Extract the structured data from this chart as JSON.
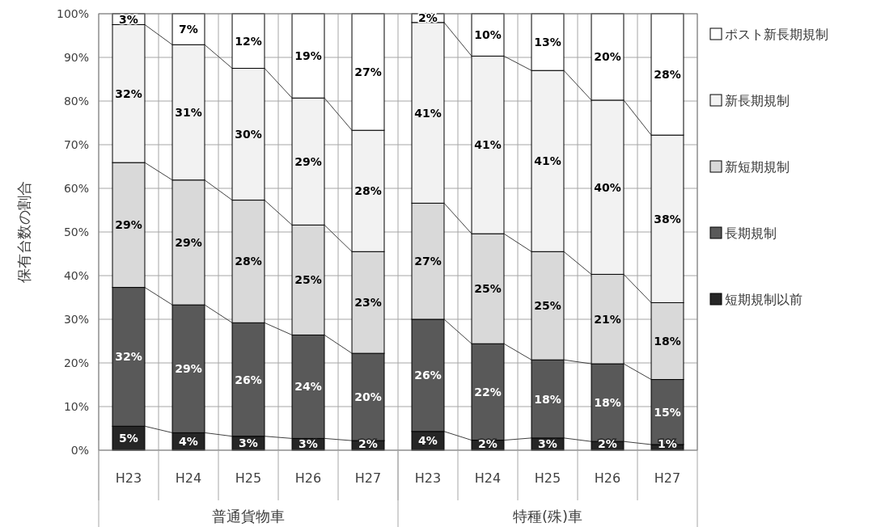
{
  "chart_data": {
    "type": "bar",
    "stacked": true,
    "ylabel": "保有台数の割合",
    "categories": [
      "H23",
      "H24",
      "H25",
      "H26",
      "H27",
      "H23",
      "H24",
      "H25",
      "H26",
      "H27"
    ],
    "annotations": [
      "普通貨物車",
      "特種(殊)車"
    ],
    "ylim": [
      0,
      100
    ],
    "yticks": [
      {
        "value": 0,
        "label": "0%"
      },
      {
        "value": 10,
        "label": "10%"
      },
      {
        "value": 20,
        "label": "20%"
      },
      {
        "value": 30,
        "label": "30%"
      },
      {
        "value": 40,
        "label": "40%"
      },
      {
        "value": 50,
        "label": "50%"
      },
      {
        "value": 60,
        "label": "60%"
      },
      {
        "value": 70,
        "label": "70%"
      },
      {
        "value": 80,
        "label": "80%"
      },
      {
        "value": 90,
        "label": "90%"
      },
      {
        "value": 100,
        "label": "100%"
      }
    ],
    "grid": true,
    "legend": "right",
    "series": [
      {
        "name": "短期規制以前",
        "color": "#262626",
        "values": [
          5.5,
          4,
          3.2,
          2.7,
          2.2,
          4.3,
          2.3,
          2.8,
          2,
          1.3
        ],
        "value_labels": [
          "5%",
          "4%",
          "3%",
          "3%",
          "2%",
          "4%",
          "2%",
          "3%",
          "2%",
          "1%"
        ]
      },
      {
        "name": "長期規制",
        "color": "#595959",
        "values": [
          31.8,
          29.3,
          26,
          23.7,
          20,
          25.7,
          22.1,
          17.9,
          17.8,
          14.9
        ],
        "value_labels": [
          "32%",
          "29%",
          "26%",
          "24%",
          "20%",
          "26%",
          "22%",
          "18%",
          "18%",
          "15%"
        ]
      },
      {
        "name": "新短期規制",
        "color": "#d9d9d9",
        "values": [
          28.6,
          28.6,
          28.1,
          25.2,
          23.3,
          26.6,
          25.2,
          24.8,
          20.5,
          17.6
        ],
        "value_labels": [
          "29%",
          "29%",
          "28%",
          "25%",
          "23%",
          "27%",
          "25%",
          "25%",
          "21%",
          "18%"
        ]
      },
      {
        "name": "新長期規制",
        "color": "#f2f2f2",
        "values": [
          31.6,
          31,
          30.2,
          29.1,
          27.8,
          41.4,
          40.7,
          41.5,
          39.9,
          38.4
        ],
        "value_labels": [
          "32%",
          "31%",
          "30%",
          "29%",
          "28%",
          "41%",
          "41%",
          "41%",
          "40%",
          "38%"
        ]
      },
      {
        "name": "ポスト新長期規制",
        "color": "#ffffff",
        "values": [
          2.5,
          7.1,
          12.5,
          19.3,
          26.7,
          2,
          9.7,
          13,
          19.8,
          27.8
        ],
        "value_labels": [
          "3%",
          "7%",
          "12%",
          "19%",
          "27%",
          "2%",
          "10%",
          "13%",
          "20%",
          "28%"
        ]
      }
    ]
  }
}
